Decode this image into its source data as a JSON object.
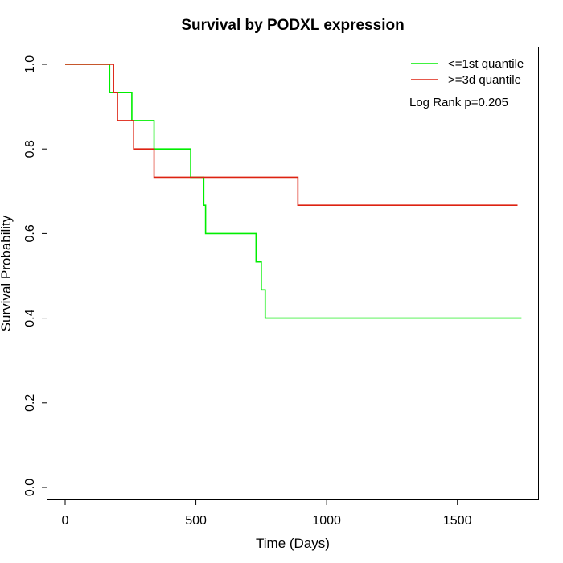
{
  "chart_data": {
    "type": "line",
    "title": "Survival by PODXL expression",
    "xlabel": "Time (Days)",
    "ylabel": "Survival Probability",
    "xlim": [
      0,
      1750
    ],
    "ylim": [
      0,
      1
    ],
    "x_ticks": [
      0,
      500,
      1000,
      1500
    ],
    "x_tick_labels": [
      "0",
      "500",
      "1000",
      "1500"
    ],
    "y_ticks": [
      0,
      0.2,
      0.4,
      0.6,
      0.8,
      1
    ],
    "y_tick_labels": [
      "0.0",
      "0.2",
      "0.4",
      "0.6",
      "0.8",
      "1.0"
    ],
    "grid": false,
    "legend_position": "top-right",
    "annotation": "Log Rank p=0.205",
    "series": [
      {
        "name": "<=1st quantile",
        "color": "#00ee00",
        "step": true,
        "x": [
          0,
          170,
          255,
          340,
          480,
          530,
          537,
          730,
          750,
          765,
          1745
        ],
        "y": [
          1.0,
          0.933,
          0.867,
          0.8,
          0.733,
          0.667,
          0.6,
          0.533,
          0.467,
          0.4,
          0.4
        ]
      },
      {
        "name": ">=3d quantile",
        "color": "#dd2211",
        "step": true,
        "x": [
          0,
          185,
          200,
          262,
          340,
          890,
          1730
        ],
        "y": [
          1.0,
          0.933,
          0.867,
          0.8,
          0.733,
          0.667,
          0.667
        ]
      }
    ]
  }
}
